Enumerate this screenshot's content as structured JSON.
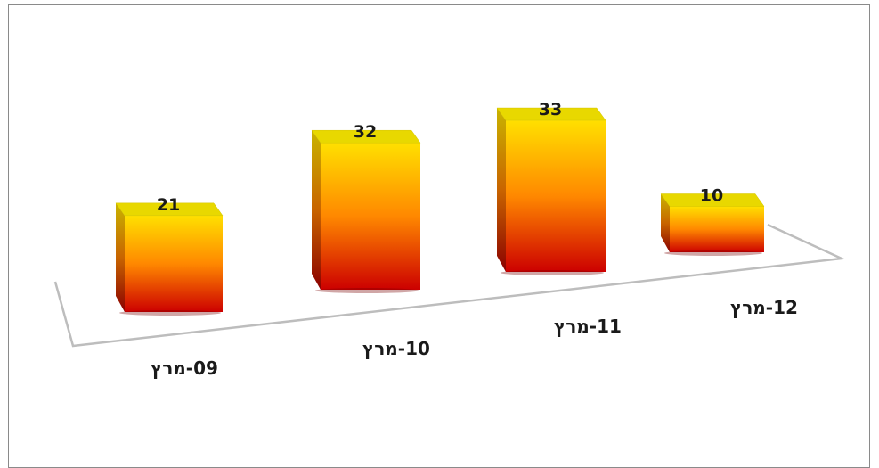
{
  "chart_data": {
    "type": "bar",
    "categories": [
      "09-מרץ",
      "10-מרץ",
      "11-מרץ",
      "12-מרץ"
    ],
    "values": [
      21,
      32,
      33,
      10
    ],
    "data_labels": [
      "21",
      "32",
      "33",
      "10"
    ],
    "title": "",
    "xlabel": "",
    "ylabel": "",
    "legend": "none",
    "grid": false,
    "style": "3d-column-gradient",
    "colors": {
      "top_face": "#e8d800",
      "gradient_top": "#ffe000",
      "gradient_mid": "#ff8800",
      "gradient_bottom": "#cc0000",
      "floor_line": "#bdbdbd",
      "frame": "#8a8a8a"
    }
  }
}
